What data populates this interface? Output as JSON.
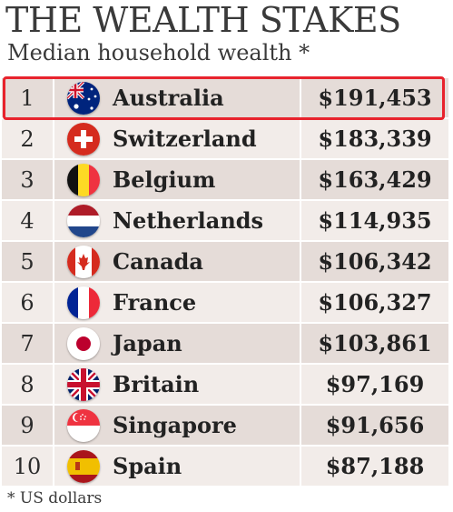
{
  "title": "THE WEALTH STAKES",
  "subtitle": "Median household wealth *",
  "footnote": "* US dollars",
  "colors": {
    "highlight": "#e8232d",
    "row_light": "#f2ece9",
    "row_dark": "#e5dcd8"
  },
  "rows": [
    {
      "rank": "1",
      "country": "Australia",
      "wealth": "$191,453",
      "flag_icon": "australia-flag-icon"
    },
    {
      "rank": "2",
      "country": "Switzerland",
      "wealth": "$183,339",
      "flag_icon": "switzerland-flag-icon"
    },
    {
      "rank": "3",
      "country": "Belgium",
      "wealth": "$163,429",
      "flag_icon": "belgium-flag-icon"
    },
    {
      "rank": "4",
      "country": "Netherlands",
      "wealth": "$114,935",
      "flag_icon": "netherlands-flag-icon"
    },
    {
      "rank": "5",
      "country": "Canada",
      "wealth": "$106,342",
      "flag_icon": "canada-flag-icon"
    },
    {
      "rank": "6",
      "country": "France",
      "wealth": "$106,327",
      "flag_icon": "france-flag-icon"
    },
    {
      "rank": "7",
      "country": "Japan",
      "wealth": "$103,861",
      "flag_icon": "japan-flag-icon"
    },
    {
      "rank": "8",
      "country": "Britain",
      "wealth": "$97,169",
      "flag_icon": "britain-flag-icon"
    },
    {
      "rank": "9",
      "country": "Singapore",
      "wealth": "$91,656",
      "flag_icon": "singapore-flag-icon"
    },
    {
      "rank": "10",
      "country": "Spain",
      "wealth": "$87,188",
      "flag_icon": "spain-flag-icon"
    }
  ]
}
